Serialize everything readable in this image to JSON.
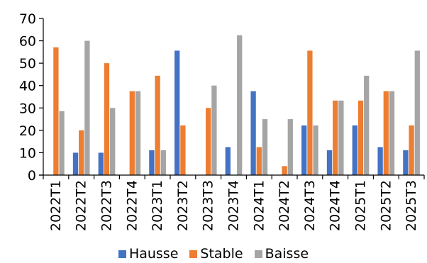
{
  "chart_data": {
    "type": "bar",
    "title": "",
    "categories": [
      "2022T1",
      "2022T2",
      "2022T3",
      "2022T4",
      "2023T1",
      "2023T2",
      "2023T3",
      "2023T4",
      "2024T1",
      "2024T2",
      "2024T3",
      "2024T4",
      "2025T1",
      "2025T2",
      "2025T3"
    ],
    "series": [
      {
        "name": "Hausse",
        "color": "#4472C4",
        "values": [
          0,
          10,
          10,
          0,
          11.1,
          55.6,
          0,
          12.5,
          37.5,
          0,
          22.2,
          11.1,
          22.2,
          12.5,
          11.1
        ]
      },
      {
        "name": "Stable",
        "color": "#ED7D31",
        "values": [
          57.1,
          20,
          50,
          37.5,
          44.4,
          22.2,
          30,
          0,
          12.5,
          4,
          55.6,
          33.3,
          33.3,
          37.5,
          22.2
        ]
      },
      {
        "name": "Baisse",
        "color": "#A5A5A5",
        "values": [
          28.6,
          60,
          30,
          37.5,
          11.1,
          0,
          40,
          62.5,
          25,
          25,
          22.2,
          33.3,
          44.4,
          37.5,
          55.6
        ]
      }
    ],
    "ylim": [
      0,
      70
    ],
    "yticks": [
      0,
      10,
      20,
      30,
      40,
      50,
      60,
      70
    ],
    "xlabel": "",
    "ylabel": "",
    "grid": false,
    "legend_position": "bottom"
  }
}
